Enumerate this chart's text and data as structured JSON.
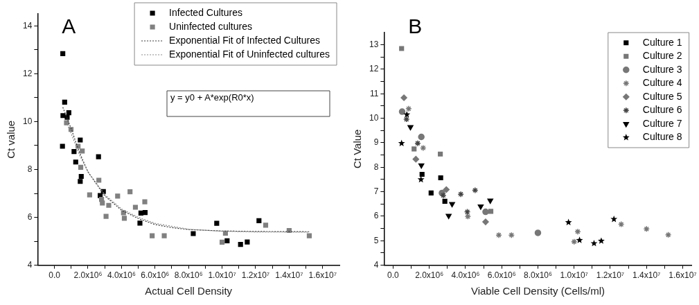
{
  "chart_data": [
    {
      "type": "scatter",
      "xlabel": "Actual Cell Density",
      "ylabel": "Ct value",
      "annotations": [
        "A",
        "y = y0 + A*exp(R0*x)"
      ],
      "legend": "top right",
      "grid": false,
      "xlim": [
        -1000000,
        17000000
      ],
      "xticks": [
        {
          "value": 0,
          "label": "0.0"
        },
        {
          "value": 1000000,
          "label": null
        },
        {
          "value": 2000000,
          "label": "2.0x10⁶"
        },
        {
          "value": 3000000,
          "label": null
        },
        {
          "value": 4000000,
          "label": "4.0x10⁶"
        },
        {
          "value": 5000000,
          "label": null
        },
        {
          "value": 6000000,
          "label": "6.0x10⁶"
        },
        {
          "value": 7000000,
          "label": null
        },
        {
          "value": 8000000,
          "label": "8.0x10⁶"
        },
        {
          "value": 9000000,
          "label": null
        },
        {
          "value": 10000000,
          "label": "1.0x10⁷"
        },
        {
          "value": 11000000,
          "label": null
        },
        {
          "value": 12000000,
          "label": "1.2x10⁷"
        },
        {
          "value": 13000000,
          "label": null
        },
        {
          "value": 14000000,
          "label": "1.4x10⁷"
        },
        {
          "value": 15000000,
          "label": null
        },
        {
          "value": 16000000,
          "label": "1.6x10⁷"
        }
      ],
      "ylim": [
        4,
        14.5
      ],
      "yticks": [
        4,
        {
          "value": 5,
          "label": null
        },
        6,
        {
          "value": 7,
          "label": null
        },
        8,
        {
          "value": 9,
          "label": null
        },
        10,
        {
          "value": 11,
          "label": null
        },
        12,
        {
          "value": 13,
          "label": null
        },
        14
      ],
      "series": [
        {
          "name": "Infected Cultures",
          "color": "#000000",
          "marker": "square",
          "x": [
            500000,
            610000,
            510000,
            760000,
            860000,
            480000,
            1540000,
            1170000,
            2630000,
            1270000,
            1600000,
            1540000,
            2920000,
            2730000,
            5160000,
            5410000,
            5100000,
            8280000,
            9680000,
            10300000,
            11100000,
            11500000,
            12200000
          ],
          "values": [
            12.84,
            10.81,
            10.25,
            10.18,
            10.37,
            8.97,
            9.23,
            8.75,
            8.53,
            8.31,
            7.71,
            7.5,
            7.08,
            6.91,
            6.18,
            6.2,
            5.76,
            5.32,
            5.75,
            5.02,
            4.87,
            4.97,
            5.86
          ]
        },
        {
          "name": "Uninfected cultures",
          "color": "#808080",
          "marker": "square",
          "x": [
            720000,
            990000,
            1410000,
            1660000,
            1570000,
            2650000,
            2100000,
            2810000,
            2860000,
            3240000,
            3080000,
            3770000,
            4510000,
            4830000,
            5390000,
            4120000,
            4170000,
            5830000,
            6550000,
            10200000,
            10000000,
            12600000,
            14000000,
            15200000
          ],
          "values": [
            9.95,
            9.67,
            8.97,
            8.77,
            8.09,
            7.55,
            6.94,
            6.75,
            6.6,
            6.5,
            6.04,
            6.89,
            7.07,
            6.42,
            6.65,
            6.19,
            5.96,
            5.23,
            5.23,
            5.34,
            4.96,
            5.67,
            5.45,
            5.23
          ]
        },
        {
          "name": "Exponential Fit of Infected Cultures",
          "type": "line",
          "color": "#333333",
          "marker": "none",
          "line_style": "dotted",
          "x": [
            500000,
            1000000,
            1500000,
            2000000,
            3000000,
            4000000,
            5000000,
            6000000,
            7000000,
            8000000,
            10000000,
            12000000,
            15200000
          ],
          "values": [
            10.6,
            9.7,
            8.7,
            7.9,
            6.9,
            6.3,
            5.95,
            5.7,
            5.57,
            5.49,
            5.43,
            5.41,
            5.4
          ]
        },
        {
          "name": "Exponential Fit of Uninfected cultures",
          "type": "line",
          "color": "#888888",
          "marker": "none",
          "line_style": "dotted",
          "x": [
            700000,
            1000000,
            1500000,
            2000000,
            3000000,
            4000000,
            5000000,
            6000000,
            8000000,
            10000000,
            12000000,
            15200000
          ],
          "values": [
            10.0,
            9.5,
            8.6,
            7.9,
            6.95,
            6.35,
            6.0,
            5.75,
            5.5,
            5.42,
            5.39,
            5.38
          ]
        }
      ]
    },
    {
      "type": "scatter",
      "xlabel": "Viable Cell Density (Cells/ml)",
      "ylabel": "Ct Value",
      "annotations": [
        "B"
      ],
      "legend": "top right",
      "grid": false,
      "xlim": [
        -500000,
        16500000
      ],
      "xticks": [
        {
          "value": 0,
          "label": "0.0"
        },
        {
          "value": 1000000,
          "label": null
        },
        {
          "value": 2000000,
          "label": "2.0x10⁶"
        },
        {
          "value": 3000000,
          "label": null
        },
        {
          "value": 4000000,
          "label": "4.0x10⁶"
        },
        {
          "value": 5000000,
          "label": null
        },
        {
          "value": 6000000,
          "label": "6.0x10⁶"
        },
        {
          "value": 7000000,
          "label": null
        },
        {
          "value": 8000000,
          "label": "8.0x10⁶"
        },
        {
          "value": 9000000,
          "label": null
        },
        {
          "value": 10000000,
          "label": "1.0x10⁷"
        },
        {
          "value": 11000000,
          "label": null
        },
        {
          "value": 12000000,
          "label": "1.2x10⁷"
        },
        {
          "value": 13000000,
          "label": null
        },
        {
          "value": 14000000,
          "label": "1.4x10⁷"
        },
        {
          "value": 15000000,
          "label": null
        },
        {
          "value": 16000000,
          "label": "1.6x10⁷"
        }
      ],
      "ylim": [
        4,
        13.5
      ],
      "yticks": [
        4,
        {
          "value": 4.5,
          "label": null
        },
        5,
        {
          "value": 5.5,
          "label": null
        },
        6,
        {
          "value": 6.5,
          "label": null
        },
        7,
        {
          "value": 7.5,
          "label": null
        },
        8,
        {
          "value": 8.5,
          "label": null
        },
        9,
        {
          "value": 9.5,
          "label": null
        },
        10,
        {
          "value": 10.5,
          "label": null
        },
        11,
        {
          "value": 11.5,
          "label": null
        },
        12,
        {
          "value": 12.5,
          "label": null
        },
        13
      ],
      "series": [
        {
          "name": "Culture 1",
          "color": "#000000",
          "marker": "square",
          "x": [
            1600000,
            2630000,
            2100000,
            2860000
          ],
          "values": [
            7.71,
            7.57,
            6.95,
            6.61
          ]
        },
        {
          "name": "Culture 2",
          "color": "#777777",
          "marker": "square",
          "x": [
            470000,
            1160000,
            2610000,
            5400000
          ],
          "values": [
            12.85,
            8.75,
            8.54,
            6.2
          ]
        },
        {
          "name": "Culture 3",
          "color": "#777777",
          "marker": "circle",
          "x": [
            500000,
            1560000,
            2700000,
            5110000,
            8000000
          ],
          "values": [
            10.27,
            9.24,
            6.95,
            6.18,
            5.32
          ]
        },
        {
          "name": "Culture 4",
          "color": "#777777",
          "marker": "cross",
          "x": [
            860000,
            1660000,
            4130000,
            5840000,
            6540000,
            10000000,
            10200000,
            12600000,
            14000000,
            15200000
          ],
          "values": [
            10.39,
            8.79,
            5.99,
            5.23,
            5.23,
            4.96,
            5.37,
            5.67,
            5.48,
            5.24
          ]
        },
        {
          "name": "Culture 5",
          "color": "#777777",
          "marker": "diamond",
          "x": [
            600000,
            1260000,
            2940000,
            5110000
          ],
          "values": [
            10.84,
            8.33,
            7.09,
            5.77
          ]
        },
        {
          "name": "Culture 6",
          "color": "#444444",
          "marker": "cross",
          "x": [
            740000,
            1360000,
            2770000,
            3740000,
            4530000,
            4100000
          ],
          "values": [
            9.96,
            8.98,
            6.85,
            6.9,
            7.06,
            6.18
          ]
        },
        {
          "name": "Culture 7",
          "color": "#000000",
          "marker": "triangle",
          "x": [
            960000,
            1560000,
            3260000,
            3070000,
            4840000,
            5370000
          ],
          "values": [
            9.64,
            8.08,
            6.5,
            6.02,
            6.4,
            6.64
          ]
        },
        {
          "name": "Culture 8",
          "color": "#000000",
          "marker": "star",
          "x": [
            470000,
            760000,
            1540000,
            9690000,
            10300000,
            11100000,
            11500000,
            12200000
          ],
          "values": [
            8.98,
            10.15,
            7.5,
            5.75,
            5.02,
            4.89,
            4.99,
            5.88
          ]
        }
      ]
    }
  ]
}
